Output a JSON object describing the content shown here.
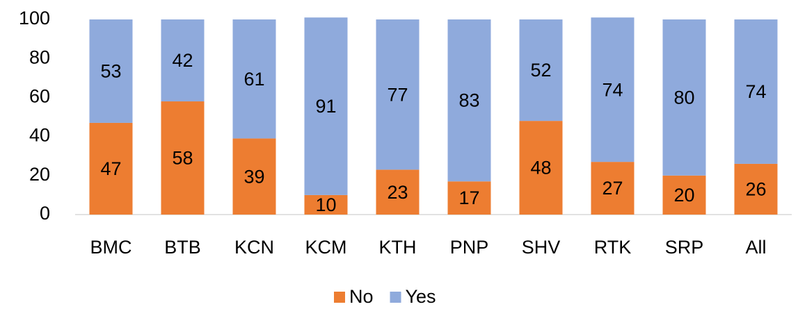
{
  "chart_data": {
    "type": "stacked_bar",
    "categories": [
      "BMC",
      "BTB",
      "KCN",
      "KCM",
      "KTH",
      "PNP",
      "SHV",
      "RTK",
      "SRP",
      "All"
    ],
    "series": [
      {
        "name": "No",
        "color": "#ed7d31",
        "values": [
          47,
          58,
          39,
          10,
          23,
          17,
          48,
          27,
          20,
          26
        ]
      },
      {
        "name": "Yes",
        "color": "#8faadc",
        "values": [
          53,
          42,
          61,
          91,
          77,
          83,
          52,
          74,
          80,
          74
        ]
      }
    ],
    "ylim": [
      0,
      100
    ],
    "yticks": [
      0,
      20,
      40,
      60,
      80,
      100
    ],
    "grid": false,
    "legend": "bottom"
  }
}
